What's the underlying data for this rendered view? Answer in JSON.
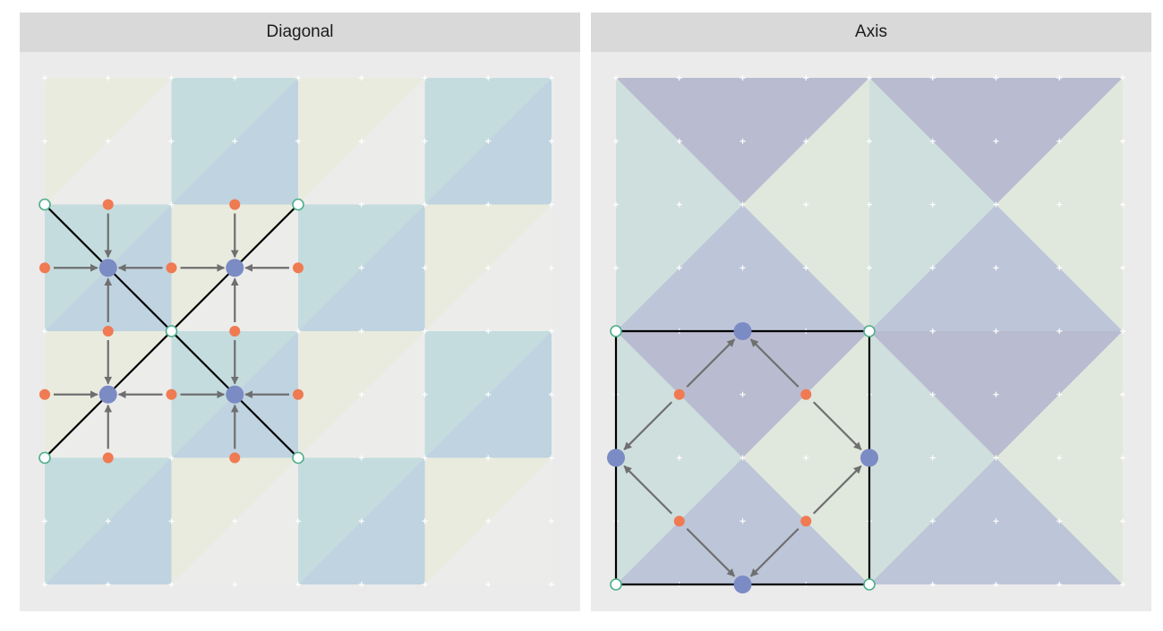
{
  "panels": {
    "left": {
      "title": "Diagonal",
      "grid_size": 4,
      "tiles": [
        [
          0,
          1,
          0,
          1
        ],
        [
          1,
          0,
          1,
          0
        ],
        [
          0,
          1,
          0,
          1
        ],
        [
          1,
          0,
          1,
          0
        ]
      ],
      "tile_colors": {
        "light_a": "#e9ebdf",
        "light_b": "#ececeb",
        "dark_a": "#c4dcde",
        "dark_b": "#c0d3e0"
      },
      "lines": [
        [
          [
            0,
            1
          ],
          [
            2,
            3
          ]
        ],
        [
          [
            0,
            3
          ],
          [
            2,
            1
          ]
        ]
      ],
      "hollow_points": [
        [
          0,
          1
        ],
        [
          2,
          1
        ],
        [
          1,
          2
        ],
        [
          0,
          3
        ],
        [
          2,
          3
        ]
      ],
      "blue_points": [
        [
          0.5,
          1.5
        ],
        [
          1.5,
          1.5
        ],
        [
          0.5,
          2.5
        ],
        [
          1.5,
          2.5
        ]
      ],
      "orange_points": [
        [
          0.5,
          1
        ],
        [
          1.5,
          1
        ],
        [
          0.5,
          2
        ],
        [
          1.5,
          2
        ],
        [
          0.5,
          3
        ],
        [
          1.5,
          3
        ],
        [
          0,
          1.5
        ],
        [
          1,
          1.5
        ],
        [
          2,
          1.5
        ],
        [
          0,
          2.5
        ],
        [
          1,
          2.5
        ],
        [
          2,
          2.5
        ]
      ],
      "arrows": [
        [
          [
            0.5,
            1
          ],
          [
            0.5,
            1.5
          ]
        ],
        [
          [
            0.5,
            2
          ],
          [
            0.5,
            1.5
          ]
        ],
        [
          [
            0,
            1.5
          ],
          [
            0.5,
            1.5
          ]
        ],
        [
          [
            1,
            1.5
          ],
          [
            0.5,
            1.5
          ]
        ],
        [
          [
            1.5,
            1
          ],
          [
            1.5,
            1.5
          ]
        ],
        [
          [
            1.5,
            2
          ],
          [
            1.5,
            1.5
          ]
        ],
        [
          [
            1,
            1.5
          ],
          [
            1.5,
            1.5
          ]
        ],
        [
          [
            2,
            1.5
          ],
          [
            1.5,
            1.5
          ]
        ],
        [
          [
            0.5,
            2
          ],
          [
            0.5,
            2.5
          ]
        ],
        [
          [
            0.5,
            3
          ],
          [
            0.5,
            2.5
          ]
        ],
        [
          [
            0,
            2.5
          ],
          [
            0.5,
            2.5
          ]
        ],
        [
          [
            1,
            2.5
          ],
          [
            0.5,
            2.5
          ]
        ],
        [
          [
            1.5,
            2
          ],
          [
            1.5,
            2.5
          ]
        ],
        [
          [
            1.5,
            3
          ],
          [
            1.5,
            2.5
          ]
        ],
        [
          [
            1,
            2.5
          ],
          [
            1.5,
            2.5
          ]
        ],
        [
          [
            2,
            2.5
          ],
          [
            1.5,
            2.5
          ]
        ]
      ]
    },
    "right": {
      "title": "Axis",
      "grid_size": 4,
      "triangle_colors": {
        "purple": "#b9bcd0",
        "purple_alt": "#bdc5d8",
        "green": "#cfdfdd",
        "green_alt": "#e0e7dc"
      },
      "square": [
        [
          0,
          2
        ],
        [
          2,
          2
        ],
        [
          2,
          4
        ],
        [
          0,
          4
        ]
      ],
      "hollow_points": [
        [
          0,
          2
        ],
        [
          2,
          2
        ],
        [
          0,
          4
        ],
        [
          2,
          4
        ]
      ],
      "blue_points": [
        [
          1,
          2
        ],
        [
          0,
          3
        ],
        [
          2,
          3
        ],
        [
          1,
          4
        ]
      ],
      "orange_points": [
        [
          0.5,
          2.5
        ],
        [
          1.5,
          2.5
        ],
        [
          0.5,
          3.5
        ],
        [
          1.5,
          3.5
        ]
      ],
      "arrows": [
        [
          [
            0.5,
            2.5
          ],
          [
            1,
            2
          ]
        ],
        [
          [
            1.5,
            2.5
          ],
          [
            1,
            2
          ]
        ],
        [
          [
            0.5,
            2.5
          ],
          [
            0,
            3
          ]
        ],
        [
          [
            0.5,
            3.5
          ],
          [
            0,
            3
          ]
        ],
        [
          [
            1.5,
            2.5
          ],
          [
            2,
            3
          ]
        ],
        [
          [
            1.5,
            3.5
          ],
          [
            2,
            3
          ]
        ],
        [
          [
            0.5,
            3.5
          ],
          [
            1,
            4
          ]
        ],
        [
          [
            1.5,
            3.5
          ],
          [
            1,
            4
          ]
        ]
      ]
    }
  },
  "mark_colors": {
    "blue": "#7b8bc4",
    "orange": "#f07a52",
    "hollow_stroke": "#4daf8a",
    "arrow": "#6f6f6f",
    "line": "#000000",
    "grid_plus": "#ffffff"
  }
}
